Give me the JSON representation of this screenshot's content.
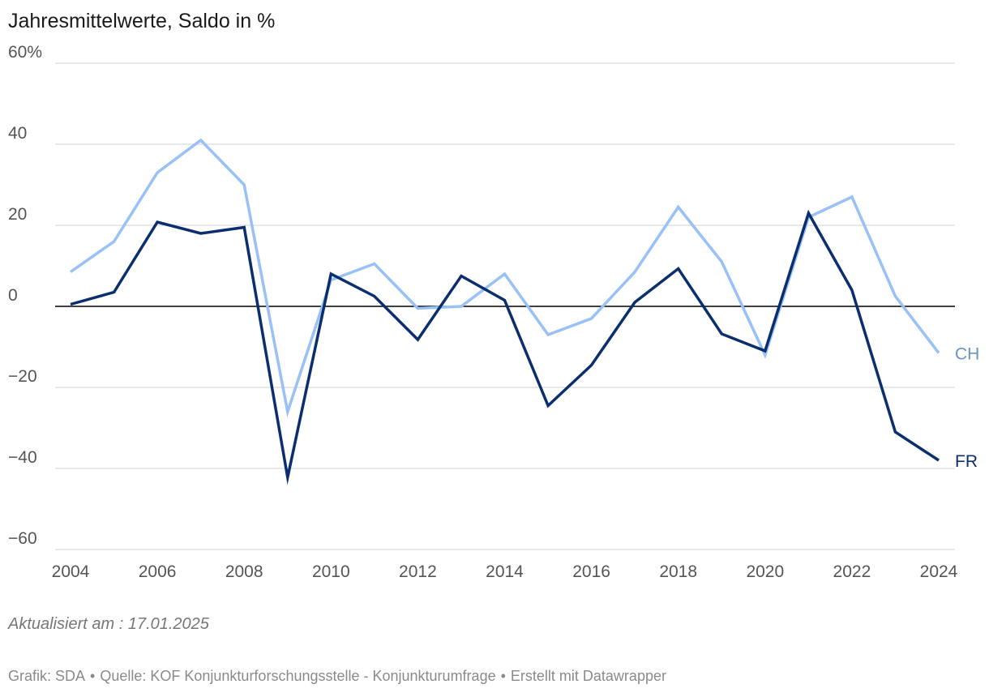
{
  "title": "Jahresmittelwerte, Saldo in %",
  "note": "Aktualisiert am : 17.01.2025",
  "footer": {
    "grafik": "Grafik: SDA",
    "quelle": "Quelle: KOF Konjunkturforschungsstelle - Konjunkturumfrage",
    "erstellt": "Erstellt mit Datawrapper",
    "separator": "•"
  },
  "chart_data": {
    "type": "line",
    "title": "Jahresmittelwerte, Saldo in %",
    "xlabel": "",
    "ylabel": "",
    "x": [
      2004,
      2005,
      2006,
      2007,
      2008,
      2009,
      2010,
      2011,
      2012,
      2013,
      2014,
      2015,
      2016,
      2017,
      2018,
      2019,
      2020,
      2021,
      2022,
      2023,
      2024
    ],
    "x_ticks": [
      "2004",
      "2006",
      "2008",
      "2010",
      "2012",
      "2014",
      "2016",
      "2018",
      "2020",
      "2022",
      "2024"
    ],
    "y_ticks": [
      "60%",
      "40",
      "20",
      "0",
      "−20",
      "−40",
      "−60"
    ],
    "y_tick_values": [
      60,
      40,
      20,
      0,
      -20,
      -40,
      -60
    ],
    "xlim": [
      2004,
      2024
    ],
    "ylim": [
      -60,
      60
    ],
    "grid": true,
    "legend": "inline labels at line ends (right)",
    "series": [
      {
        "name": "CH",
        "color": "#99c0f7",
        "label_color": "#6c93c5",
        "values": [
          8.5,
          16,
          33,
          41,
          30,
          -26,
          6.5,
          10.5,
          -0.5,
          0,
          8,
          -7,
          -3,
          8.5,
          24.5,
          11,
          -12,
          22,
          27,
          2.5,
          -11.5
        ]
      },
      {
        "name": "FR",
        "color": "#0b2e6f",
        "label_color": "#0b2e6f",
        "values": [
          0.5,
          3.5,
          20.8,
          18,
          19.5,
          -42.2,
          8,
          2.5,
          -8.2,
          7.5,
          1.5,
          -24.5,
          -14.5,
          1,
          9.3,
          -6.8,
          -11,
          23,
          4,
          -31,
          -38
        ]
      }
    ]
  }
}
